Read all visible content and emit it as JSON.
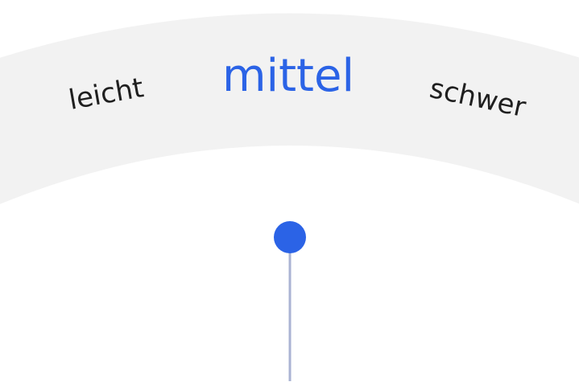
{
  "difficulty_selector": {
    "options": [
      {
        "label": "leicht"
      },
      {
        "label": "mittel"
      },
      {
        "label": "schwer"
      }
    ],
    "selected": "mittel"
  },
  "colors": {
    "band": "#f2f2f2",
    "selected_text": "#2b63e6",
    "text": "#1f1f1f",
    "needle": "#aab3d3",
    "knob": "#2b63e6"
  }
}
